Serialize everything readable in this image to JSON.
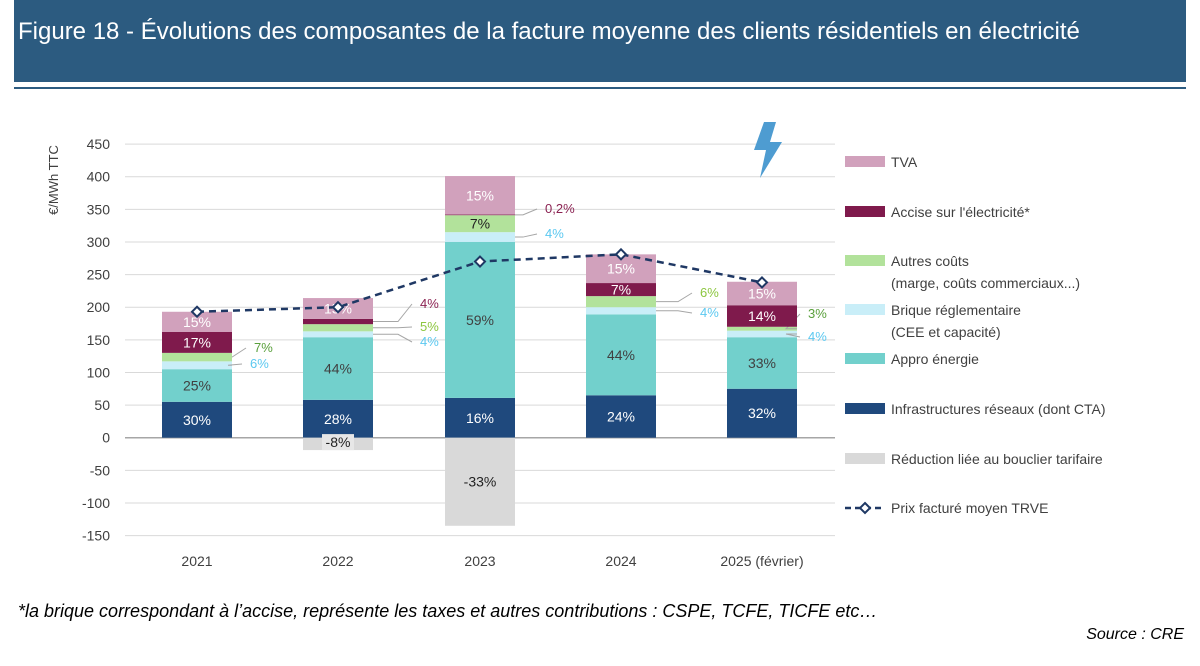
{
  "title": "Figure 18 - Évolutions des composantes de la facture moyenne des clients résidentiels en électricité",
  "footnote": "*la brique correspondant à l’accise, représente les taxes et autres contributions : CSPE, TCFE, TICFE etc…",
  "source": "Source : CRE",
  "icon": "lightning-icon",
  "chart_data": {
    "type": "bar",
    "stacked": true,
    "ylabel": "€/MWh TTC",
    "ylim": [
      -150,
      450
    ],
    "yticks": [
      "450",
      "400",
      "350",
      "300",
      "250",
      "200",
      "150",
      "100",
      "50",
      "0",
      "-50",
      "-100",
      "-150"
    ],
    "grid": true,
    "legend_position": "right",
    "categories": [
      "2021",
      "2022",
      "2023",
      "2024",
      "2025 (février)"
    ],
    "series": [
      {
        "name": "Infrastructures réseaux (dont CTA)",
        "color": "#1f497d",
        "values": [
          55,
          58,
          61,
          65,
          75
        ],
        "labels": [
          "30%",
          "28%",
          "16%",
          "24%",
          "32%"
        ]
      },
      {
        "name": "Appro énergie",
        "color": "#72d0cc",
        "values": [
          50,
          96,
          239,
          124,
          79
        ],
        "labels": [
          "25%",
          "44%",
          "59%",
          "44%",
          "33%"
        ]
      },
      {
        "name": "Brique réglementaire\n(CEE et capacité)",
        "color": "#c9eef8",
        "values": [
          12,
          9,
          15,
          11,
          10
        ],
        "labels": [
          "6%",
          "4%",
          "4%",
          "4%",
          "4%"
        ]
      },
      {
        "name": "Autres coûts\n(marge, coûts commerciaux...)",
        "color": "#b2e29b",
        "values": [
          13,
          11,
          26,
          17,
          6
        ],
        "labels": [
          "7%",
          "5%",
          "7%",
          "6%",
          "3%"
        ]
      },
      {
        "name": "Accise sur l'électricité*",
        "color": "#7f1a4c",
        "values": [
          32,
          8,
          1,
          20,
          33
        ],
        "labels": [
          "17%",
          "4%",
          "0,2%",
          "7%",
          "14%"
        ]
      },
      {
        "name": "TVA",
        "color": "#d1a1bc",
        "values": [
          31,
          32,
          59,
          44,
          36
        ],
        "labels": [
          "15%",
          "15%",
          "15%",
          "15%",
          "15%"
        ]
      },
      {
        "name": "Réduction liée au bouclier tarifaire",
        "color": "#d9d9d9",
        "values": [
          0,
          -19,
          -135,
          0,
          0
        ],
        "labels": [
          "",
          "-8%",
          "-33%",
          "",
          ""
        ]
      }
    ],
    "line": {
      "name": "Prix facturé moyen TRVE",
      "color": "#1f3864",
      "values": [
        193,
        200,
        270,
        281,
        238
      ]
    }
  }
}
